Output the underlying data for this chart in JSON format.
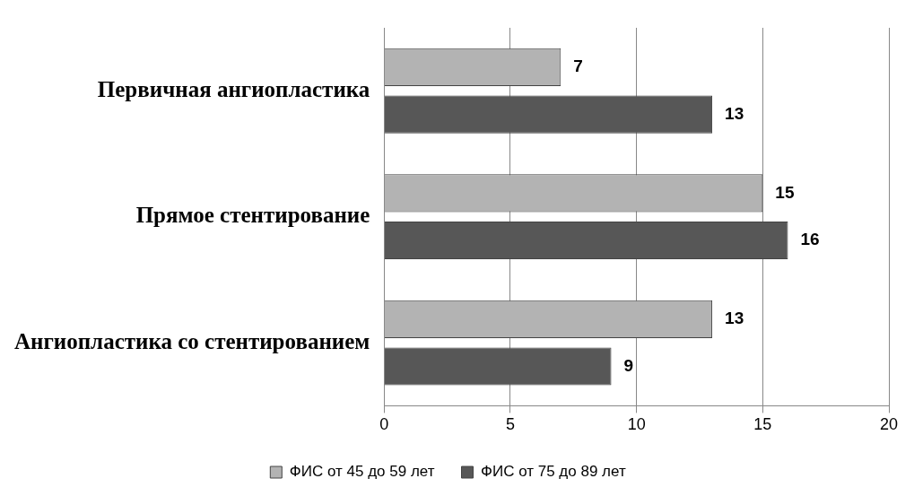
{
  "chart_data": {
    "type": "bar",
    "orientation": "horizontal",
    "categories": [
      "Первичная ангиопластика",
      "Прямое стентирование",
      "Ангиопластика со стентированием"
    ],
    "series": [
      {
        "name": "ФИС от 45 до 59 лет",
        "color": "#b3b3b3",
        "values": [
          7,
          15,
          13
        ]
      },
      {
        "name": "ФИС от 75 до 89 лет",
        "color": "#575757",
        "values": [
          13,
          16,
          9
        ]
      }
    ],
    "xlim": [
      0,
      20
    ],
    "xticks": [
      0,
      5,
      10,
      15,
      20
    ],
    "grid": "x",
    "legend": "bottom",
    "data_labels": true
  }
}
